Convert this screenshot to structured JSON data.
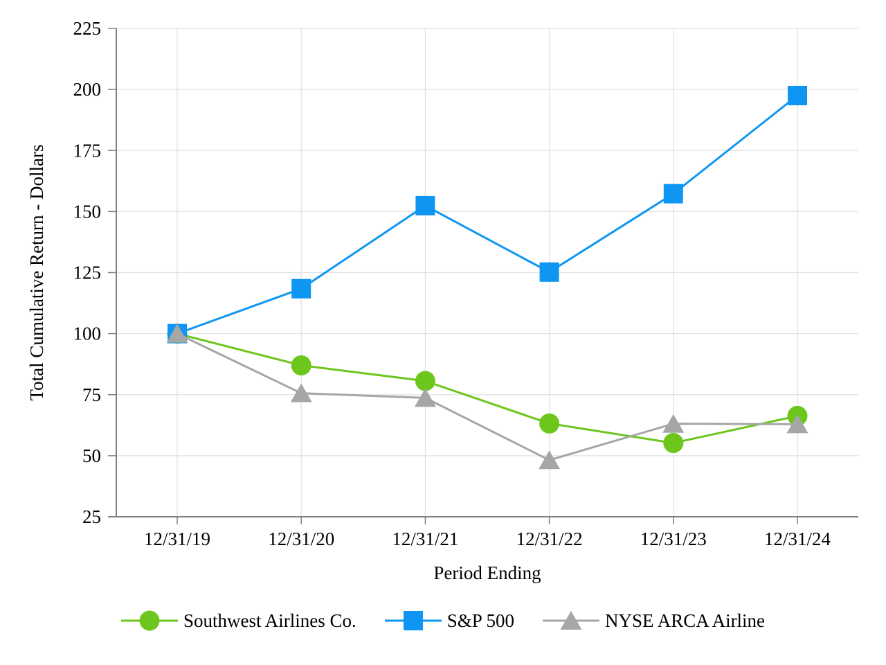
{
  "page": {
    "background": "#FFFFFF"
  },
  "chart_data": {
    "type": "line",
    "title": "",
    "xlabel": "Period Ending",
    "ylabel": "Total Cumulative Return - Dollars",
    "categories": [
      "12/31/19",
      "12/31/20",
      "12/31/21",
      "12/31/22",
      "12/31/23",
      "12/31/24"
    ],
    "ylim": [
      25,
      225
    ],
    "ytick_step": 25,
    "ytick_labels": [
      "25",
      "50",
      "75",
      "100",
      "125",
      "150",
      "175",
      "200",
      "225"
    ],
    "grid": true,
    "legend_position": "bottom",
    "series": [
      {
        "name": "Southwest Airlines Co.",
        "marker": "circle",
        "color": "#6CC61C",
        "values": [
          100,
          87,
          80.6,
          63.2,
          55.2,
          66.3
        ]
      },
      {
        "name": "S&P 500",
        "marker": "square",
        "color": "#0E96F2",
        "values": [
          100,
          118.4,
          152.4,
          125.2,
          157.3,
          197.5
        ]
      },
      {
        "name": "NYSE ARCA Airline",
        "marker": "triangle",
        "color": "#A6A6A6",
        "values": [
          100,
          75.6,
          73.7,
          48.2,
          63.1,
          62.9
        ]
      }
    ]
  },
  "style": {
    "grid_color": "#E2E2E2",
    "axis_color": "#808080",
    "text_color": "#000000",
    "tick_font_size": 27,
    "axis_title_font_size": 27,
    "legend_font_size": 27
  }
}
